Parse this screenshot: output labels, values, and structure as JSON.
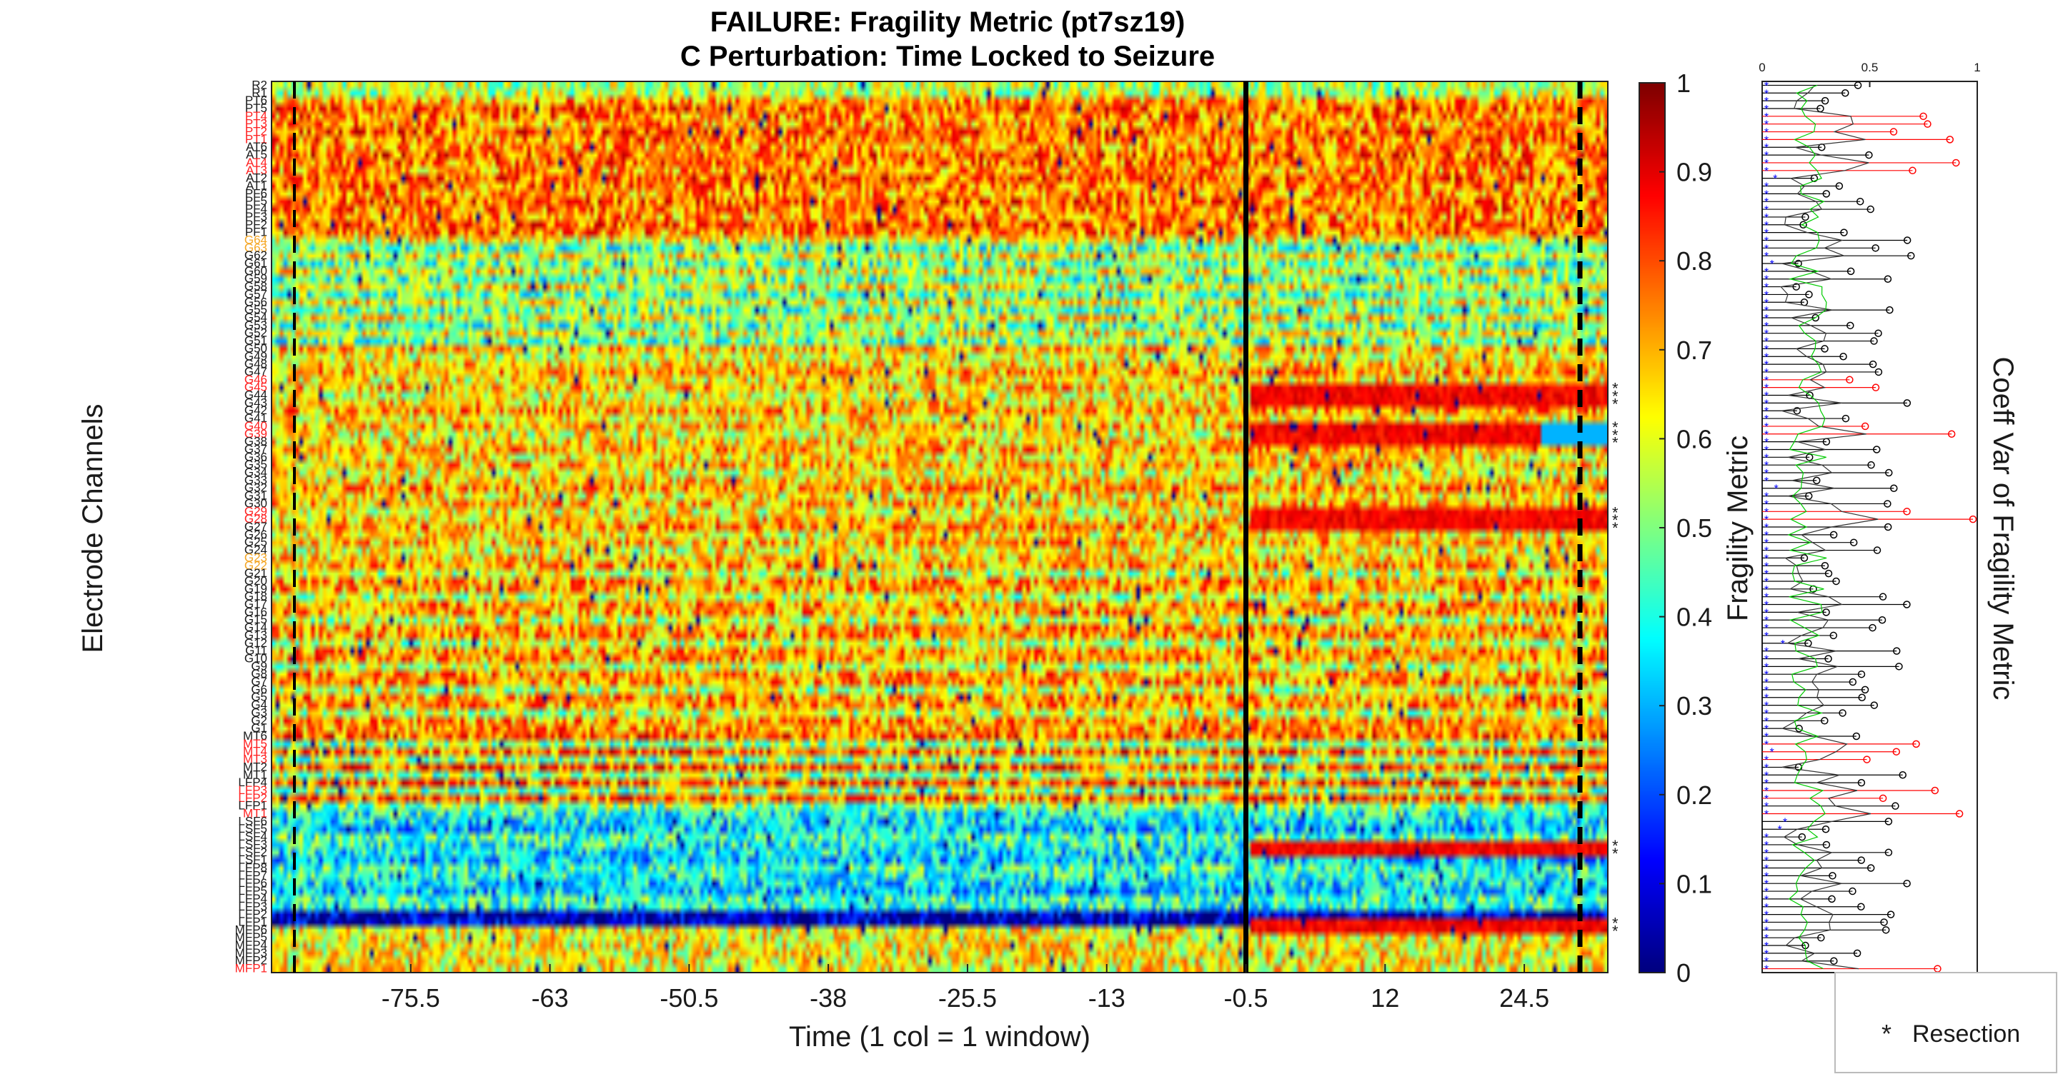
{
  "chart_data": [
    {
      "type": "heatmap",
      "title": "FAILURE: Fragility Metric (pt7sz19)",
      "subtitle": "C Perturbation:  Time Locked to Seizure",
      "xlabel": "Time (1 col = 1 window)",
      "ylabel": "Electrode Channels",
      "x_ticks": [
        -75.5,
        -63,
        -50.5,
        -38,
        -25.5,
        -13,
        -0.5,
        12,
        24.5
      ],
      "x_range": [
        -88,
        32
      ],
      "seizure_onset_x": -0.5,
      "seizure_offset_x": 29.5,
      "channel_labels_visible": [
        "R2",
        "R1",
        "PT6",
        "PT5",
        "PT4",
        "PT3",
        "PT2",
        "PT1",
        "AT6",
        "AT5",
        "AT4",
        "AT3",
        "AT2",
        "AT1",
        "PF6",
        "PF5",
        "PF4",
        "PF3",
        "PF2",
        "PF1",
        "G64",
        "G63",
        "G62",
        "G61",
        "G60",
        "G59",
        "G58",
        "G57",
        "G56",
        "G55",
        "G54",
        "G53",
        "G52",
        "G51",
        "G50",
        "G49",
        "G48",
        "G47",
        "G46",
        "G45",
        "G44",
        "G43",
        "G42",
        "G41",
        "G40",
        "G39",
        "G38",
        "G37",
        "G36",
        "G35",
        "G34",
        "G33",
        "G32",
        "G31",
        "G30",
        "G29",
        "G28",
        "G27",
        "G26",
        "G25",
        "G24",
        "G23",
        "G22",
        "G21",
        "G20",
        "G19",
        "G18",
        "G17",
        "G16",
        "G15",
        "G14",
        "G13",
        "G12",
        "G11",
        "G10",
        "G9",
        "G8",
        "G7",
        "G6",
        "G5",
        "G4",
        "G3",
        "G2",
        "G1",
        "MT6",
        "MT5",
        "MT4",
        "MT3",
        "MT2",
        "MT1",
        "LFP4",
        "LFP3",
        "LFP2",
        "LFP1",
        "MT1",
        "LSF6",
        "LSF5",
        "LSF4",
        "LSF3",
        "LSF2",
        "LSF1",
        "LFP8",
        "LFP7",
        "LFP6",
        "LFP5",
        "LFP4",
        "LFP3",
        "LFP2",
        "LFP1",
        "MFP6",
        "MFP5",
        "MFP4",
        "MFP3",
        "MFP2",
        "MFP1"
      ],
      "colormap": "jet",
      "colorbar": {
        "label": "Fragility Metric",
        "ticks": [
          "0",
          "0.1",
          "0.2",
          "0.3",
          "0.4",
          "0.5",
          "0.6",
          "0.7",
          "0.8",
          "0.9",
          "1"
        ],
        "range": [
          0,
          1
        ]
      }
    },
    {
      "type": "line",
      "orientation": "vertical stem",
      "ylabel": "Coeff Var of Fragility Metric",
      "x_ticks": [
        "0",
        "0.5",
        "1"
      ],
      "x_range": [
        0,
        1
      ],
      "legend": {
        "position": "bottom-right",
        "entries": [
          {
            "marker": "*",
            "label": "Resection"
          }
        ]
      }
    }
  ],
  "colors": {
    "clinical_channel": "#ff2020",
    "secondary_channel": "#f5a623",
    "stem_default": "#000000",
    "stem_clinical": "#ff0000",
    "mean_marker": "#0000ff",
    "variance_line": "#00cc00"
  }
}
